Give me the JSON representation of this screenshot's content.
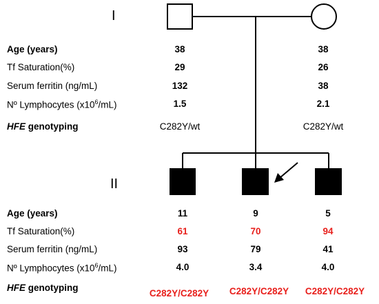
{
  "generations": {
    "gen1": "I",
    "gen2": "II"
  },
  "labels": {
    "age": "Age (years)",
    "tf": "Tf Saturation(%)",
    "ferritin": "Serum ferritin (ng/mL)",
    "lymph_pre": "Nº Lymphocytes (x10",
    "lymph_sup": "6",
    "lymph_post": "/mL)",
    "hfe_em": "HFE",
    "hfe_rest": " genotyping"
  },
  "parents": [
    {
      "sex": "male",
      "affected": false,
      "age": "38",
      "tf": "29",
      "ferritin": "132",
      "lymph": "1.5",
      "genotype": "C282Y/wt"
    },
    {
      "sex": "female",
      "affected": false,
      "age": "38",
      "tf": "26",
      "ferritin": "38",
      "lymph": "2.1",
      "genotype": "C282Y/wt"
    }
  ],
  "children": [
    {
      "sex": "male",
      "affected": true,
      "proband": false,
      "age": "11",
      "tf": "61",
      "ferritin": "93",
      "lymph": "4.0",
      "genotype": "C282Y/C282Y"
    },
    {
      "sex": "male",
      "affected": true,
      "proband": true,
      "age": "9",
      "tf": "70",
      "ferritin": "79",
      "lymph": "3.4",
      "genotype": "C282Y/C282Y"
    },
    {
      "sex": "male",
      "affected": true,
      "proband": false,
      "age": "5",
      "tf": "94",
      "ferritin": "41",
      "lymph": "4.0",
      "genotype": "C282Y/C282Y"
    }
  ],
  "colors": {
    "highlight": "#e8201c",
    "line": "#000000",
    "affected_fill": "#000000"
  }
}
